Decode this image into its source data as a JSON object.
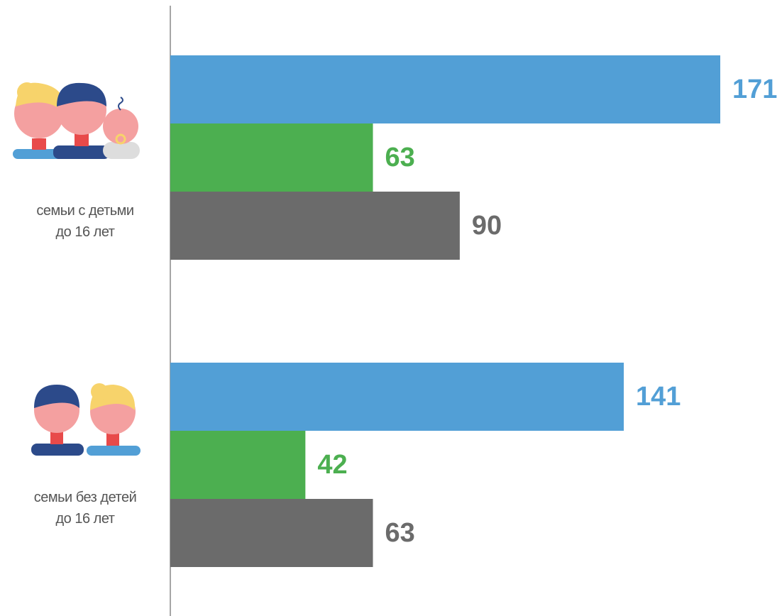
{
  "chart_data": {
    "type": "bar",
    "orientation": "horizontal",
    "categories": [
      "семьи с детьми\nдо 16 лет",
      "семьи без детей\nдо 16 лет"
    ],
    "series": [
      {
        "color": "#529fd6",
        "values": [
          171,
          141
        ]
      },
      {
        "color": "#4caf50",
        "values": [
          63,
          42
        ]
      },
      {
        "color": "#6b6b6b",
        "values": [
          90,
          63
        ]
      }
    ]
  }
}
